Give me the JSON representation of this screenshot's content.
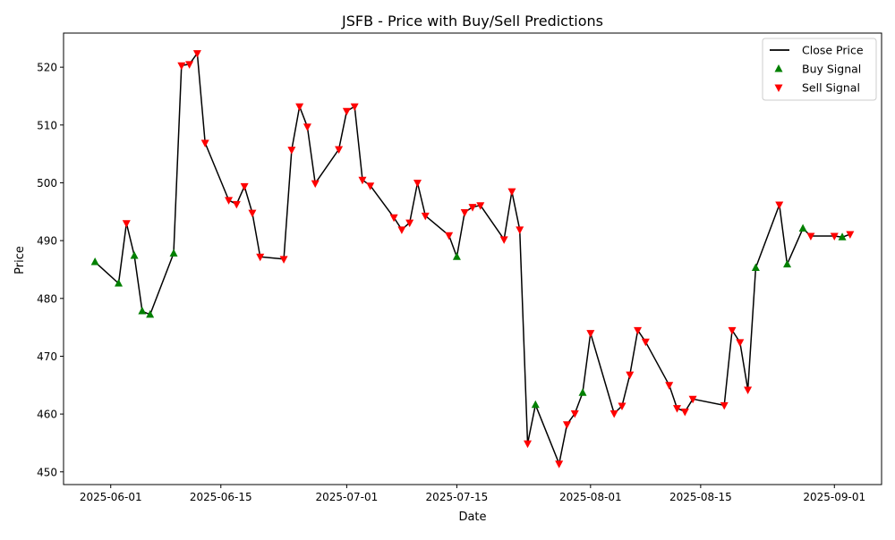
{
  "chart_data": {
    "type": "line",
    "title": "JSFB - Price with Buy/Sell Predictions",
    "xlabel": "Date",
    "ylabel": "Price",
    "xlim": [
      "2025-05-26",
      "2025-09-07"
    ],
    "ylim": [
      447.8,
      525.9
    ],
    "x_ticks": [
      "2025-06-01",
      "2025-06-15",
      "2025-07-01",
      "2025-07-15",
      "2025-08-01",
      "2025-08-15",
      "2025-09-01"
    ],
    "y_ticks": [
      450,
      460,
      470,
      480,
      490,
      500,
      510,
      520
    ],
    "grid": false,
    "legend_position": "top-right",
    "colors": {
      "close_price": "#000000",
      "buy_signal": "#008000",
      "sell_signal": "#ff0000"
    },
    "series": [
      {
        "name": "Close Price",
        "style": "line",
        "points": [
          [
            "2025-05-30",
            486.3
          ],
          [
            "2025-06-02",
            482.6
          ],
          [
            "2025-06-03",
            493.0
          ],
          [
            "2025-06-04",
            487.4
          ],
          [
            "2025-06-05",
            477.8
          ],
          [
            "2025-06-06",
            477.2
          ],
          [
            "2025-06-09",
            487.8
          ],
          [
            "2025-06-10",
            520.3
          ],
          [
            "2025-06-11",
            520.5
          ],
          [
            "2025-06-12",
            522.4
          ],
          [
            "2025-06-13",
            506.9
          ],
          [
            "2025-06-16",
            497.0
          ],
          [
            "2025-06-17",
            496.3
          ],
          [
            "2025-06-18",
            499.4
          ],
          [
            "2025-06-19",
            494.8
          ],
          [
            "2025-06-20",
            487.2
          ],
          [
            "2025-06-23",
            486.8
          ],
          [
            "2025-06-24",
            505.7
          ],
          [
            "2025-06-25",
            513.2
          ],
          [
            "2025-06-26",
            509.7
          ],
          [
            "2025-06-27",
            499.9
          ],
          [
            "2025-06-30",
            505.8
          ],
          [
            "2025-07-01",
            512.4
          ],
          [
            "2025-07-02",
            513.2
          ],
          [
            "2025-07-03",
            500.5
          ],
          [
            "2025-07-04",
            499.5
          ],
          [
            "2025-07-07",
            494.0
          ],
          [
            "2025-07-08",
            491.9
          ],
          [
            "2025-07-09",
            493.1
          ],
          [
            "2025-07-10",
            500.0
          ],
          [
            "2025-07-11",
            494.3
          ],
          [
            "2025-07-14",
            490.9
          ],
          [
            "2025-07-15",
            487.2
          ],
          [
            "2025-07-16",
            494.9
          ],
          [
            "2025-07-17",
            495.8
          ],
          [
            "2025-07-18",
            496.1
          ],
          [
            "2025-07-21",
            490.2
          ],
          [
            "2025-07-22",
            498.5
          ],
          [
            "2025-07-23",
            491.9
          ],
          [
            "2025-07-24",
            454.9
          ],
          [
            "2025-07-25",
            461.6
          ],
          [
            "2025-07-28",
            451.4
          ],
          [
            "2025-07-29",
            458.2
          ],
          [
            "2025-07-30",
            460.1
          ],
          [
            "2025-07-31",
            463.7
          ],
          [
            "2025-08-01",
            474.0
          ],
          [
            "2025-08-04",
            460.1
          ],
          [
            "2025-08-05",
            461.4
          ],
          [
            "2025-08-06",
            466.8
          ],
          [
            "2025-08-07",
            474.5
          ],
          [
            "2025-08-08",
            472.5
          ],
          [
            "2025-08-11",
            465.0
          ],
          [
            "2025-08-12",
            461.0
          ],
          [
            "2025-08-13",
            460.4
          ],
          [
            "2025-08-14",
            462.6
          ],
          [
            "2025-08-18",
            461.5
          ],
          [
            "2025-08-19",
            474.5
          ],
          [
            "2025-08-20",
            472.4
          ],
          [
            "2025-08-21",
            464.2
          ],
          [
            "2025-08-22",
            485.3
          ],
          [
            "2025-08-25",
            496.2
          ],
          [
            "2025-08-26",
            485.9
          ],
          [
            "2025-08-28",
            492.1
          ],
          [
            "2025-08-29",
            490.8
          ],
          [
            "2025-09-01",
            490.8
          ],
          [
            "2025-09-02",
            490.6
          ],
          [
            "2025-09-03",
            491.1
          ]
        ]
      },
      {
        "name": "Buy Signal",
        "style": "marker-up",
        "points": [
          [
            "2025-05-30",
            486.3
          ],
          [
            "2025-06-02",
            482.6
          ],
          [
            "2025-06-04",
            487.4
          ],
          [
            "2025-06-05",
            477.8
          ],
          [
            "2025-06-06",
            477.2
          ],
          [
            "2025-06-09",
            487.8
          ],
          [
            "2025-07-15",
            487.2
          ],
          [
            "2025-07-25",
            461.6
          ],
          [
            "2025-07-31",
            463.7
          ],
          [
            "2025-08-22",
            485.3
          ],
          [
            "2025-08-26",
            485.9
          ],
          [
            "2025-08-28",
            492.1
          ],
          [
            "2025-09-02",
            490.6
          ]
        ]
      },
      {
        "name": "Sell Signal",
        "style": "marker-down",
        "points": [
          [
            "2025-06-03",
            493.0
          ],
          [
            "2025-06-10",
            520.3
          ],
          [
            "2025-06-11",
            520.5
          ],
          [
            "2025-06-12",
            522.4
          ],
          [
            "2025-06-13",
            506.9
          ],
          [
            "2025-06-16",
            497.0
          ],
          [
            "2025-06-17",
            496.3
          ],
          [
            "2025-06-18",
            499.4
          ],
          [
            "2025-06-19",
            494.8
          ],
          [
            "2025-06-20",
            487.2
          ],
          [
            "2025-06-23",
            486.8
          ],
          [
            "2025-06-24",
            505.7
          ],
          [
            "2025-06-25",
            513.2
          ],
          [
            "2025-06-26",
            509.7
          ],
          [
            "2025-06-27",
            499.9
          ],
          [
            "2025-06-30",
            505.8
          ],
          [
            "2025-07-01",
            512.4
          ],
          [
            "2025-07-02",
            513.2
          ],
          [
            "2025-07-03",
            500.5
          ],
          [
            "2025-07-04",
            499.5
          ],
          [
            "2025-07-07",
            494.0
          ],
          [
            "2025-07-08",
            491.9
          ],
          [
            "2025-07-09",
            493.1
          ],
          [
            "2025-07-10",
            500.0
          ],
          [
            "2025-07-11",
            494.3
          ],
          [
            "2025-07-14",
            490.9
          ],
          [
            "2025-07-16",
            494.9
          ],
          [
            "2025-07-17",
            495.8
          ],
          [
            "2025-07-18",
            496.1
          ],
          [
            "2025-07-21",
            490.2
          ],
          [
            "2025-07-22",
            498.5
          ],
          [
            "2025-07-23",
            491.9
          ],
          [
            "2025-07-24",
            454.9
          ],
          [
            "2025-07-28",
            451.4
          ],
          [
            "2025-07-29",
            458.2
          ],
          [
            "2025-07-30",
            460.1
          ],
          [
            "2025-08-01",
            474.0
          ],
          [
            "2025-08-04",
            460.1
          ],
          [
            "2025-08-05",
            461.4
          ],
          [
            "2025-08-06",
            466.8
          ],
          [
            "2025-08-07",
            474.5
          ],
          [
            "2025-08-08",
            472.5
          ],
          [
            "2025-08-11",
            465.0
          ],
          [
            "2025-08-12",
            461.0
          ],
          [
            "2025-08-13",
            460.4
          ],
          [
            "2025-08-14",
            462.6
          ],
          [
            "2025-08-18",
            461.5
          ],
          [
            "2025-08-19",
            474.5
          ],
          [
            "2025-08-20",
            472.4
          ],
          [
            "2025-08-21",
            464.2
          ],
          [
            "2025-08-25",
            496.2
          ],
          [
            "2025-08-29",
            490.8
          ],
          [
            "2025-09-01",
            490.8
          ],
          [
            "2025-09-03",
            491.1
          ]
        ]
      }
    ]
  }
}
